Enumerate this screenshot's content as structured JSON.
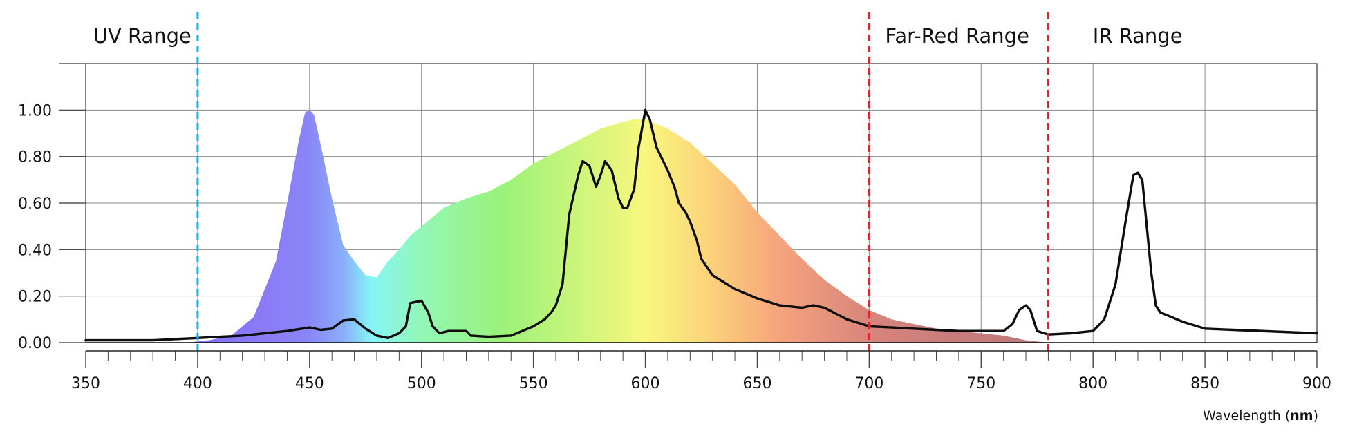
{
  "chart_data": {
    "type": "area",
    "xlabel_prefix": "Wavelength (",
    "xlabel_unit": "nm",
    "xlabel_suffix": ")",
    "ylabel": "",
    "xlim": [
      350,
      900
    ],
    "ylim": [
      0,
      1.2
    ],
    "x_ticks": [
      350,
      400,
      450,
      500,
      550,
      600,
      650,
      700,
      750,
      800,
      850,
      900
    ],
    "y_ticks": [
      0,
      0.2,
      0.4,
      0.6,
      0.8,
      1.0
    ],
    "y_tick_labels": [
      "0.00",
      "0.20",
      "0.40",
      "0.60",
      "0.80",
      "1.00"
    ],
    "grid": true,
    "legend": "none",
    "regions": [
      {
        "label": "UV Range",
        "boundary": 400,
        "label_side": "left",
        "line_color": "#29a8e0"
      },
      {
        "label": "Far-Red Range",
        "boundary": 700,
        "label_side": "right",
        "line_color": "#e8202a"
      },
      {
        "label": "IR Range",
        "boundary": 780,
        "label_side": "right",
        "line_color": "#e8202a"
      }
    ],
    "series": [
      {
        "style": "filled-spectrum-gradient",
        "x": [
          395,
          405,
          415,
          425,
          435,
          440,
          445,
          448,
          450,
          452,
          455,
          460,
          465,
          470,
          475,
          480,
          485,
          490,
          495,
          500,
          505,
          510,
          515,
          520,
          530,
          540,
          550,
          560,
          570,
          580,
          590,
          595,
          600,
          605,
          610,
          620,
          630,
          640,
          650,
          660,
          670,
          680,
          690,
          700,
          710,
          720,
          730,
          740,
          750,
          760,
          770,
          780
        ],
        "y": [
          0.0,
          0.01,
          0.03,
          0.11,
          0.35,
          0.6,
          0.86,
          0.99,
          1.0,
          0.98,
          0.85,
          0.62,
          0.42,
          0.35,
          0.29,
          0.28,
          0.35,
          0.4,
          0.46,
          0.5,
          0.54,
          0.58,
          0.6,
          0.62,
          0.65,
          0.7,
          0.77,
          0.82,
          0.87,
          0.92,
          0.95,
          0.96,
          0.96,
          0.94,
          0.92,
          0.86,
          0.77,
          0.68,
          0.56,
          0.46,
          0.36,
          0.27,
          0.2,
          0.14,
          0.1,
          0.08,
          0.06,
          0.05,
          0.04,
          0.03,
          0.01,
          0.0
        ]
      },
      {
        "style": "black-line",
        "x": [
          350,
          360,
          370,
          380,
          390,
          400,
          410,
          420,
          430,
          440,
          450,
          455,
          460,
          465,
          470,
          475,
          480,
          485,
          490,
          493,
          495,
          500,
          503,
          505,
          508,
          512,
          520,
          522,
          530,
          540,
          550,
          555,
          558,
          560,
          563,
          566,
          570,
          572,
          575,
          578,
          580,
          582,
          585,
          588,
          590,
          592,
          595,
          597,
          600,
          602,
          605,
          607,
          610,
          613,
          615,
          618,
          620,
          623,
          625,
          630,
          640,
          650,
          660,
          670,
          675,
          680,
          690,
          700,
          710,
          720,
          730,
          740,
          750,
          760,
          764,
          767,
          770,
          772,
          775,
          780,
          790,
          800,
          805,
          810,
          815,
          818,
          820,
          822,
          824,
          826,
          828,
          830,
          840,
          850,
          900
        ],
        "y": [
          0.01,
          0.01,
          0.01,
          0.01,
          0.015,
          0.02,
          0.025,
          0.03,
          0.04,
          0.05,
          0.065,
          0.055,
          0.06,
          0.095,
          0.1,
          0.06,
          0.03,
          0.02,
          0.04,
          0.07,
          0.17,
          0.18,
          0.13,
          0.07,
          0.04,
          0.05,
          0.05,
          0.03,
          0.025,
          0.03,
          0.07,
          0.1,
          0.13,
          0.16,
          0.25,
          0.55,
          0.72,
          0.78,
          0.76,
          0.67,
          0.72,
          0.78,
          0.74,
          0.62,
          0.58,
          0.58,
          0.66,
          0.84,
          1.0,
          0.96,
          0.84,
          0.8,
          0.74,
          0.67,
          0.6,
          0.56,
          0.52,
          0.44,
          0.36,
          0.29,
          0.23,
          0.19,
          0.16,
          0.15,
          0.16,
          0.15,
          0.1,
          0.07,
          0.065,
          0.06,
          0.055,
          0.05,
          0.05,
          0.05,
          0.08,
          0.14,
          0.16,
          0.14,
          0.05,
          0.035,
          0.04,
          0.05,
          0.1,
          0.25,
          0.55,
          0.72,
          0.73,
          0.7,
          0.5,
          0.3,
          0.16,
          0.13,
          0.09,
          0.06,
          0.04
        ]
      }
    ]
  }
}
